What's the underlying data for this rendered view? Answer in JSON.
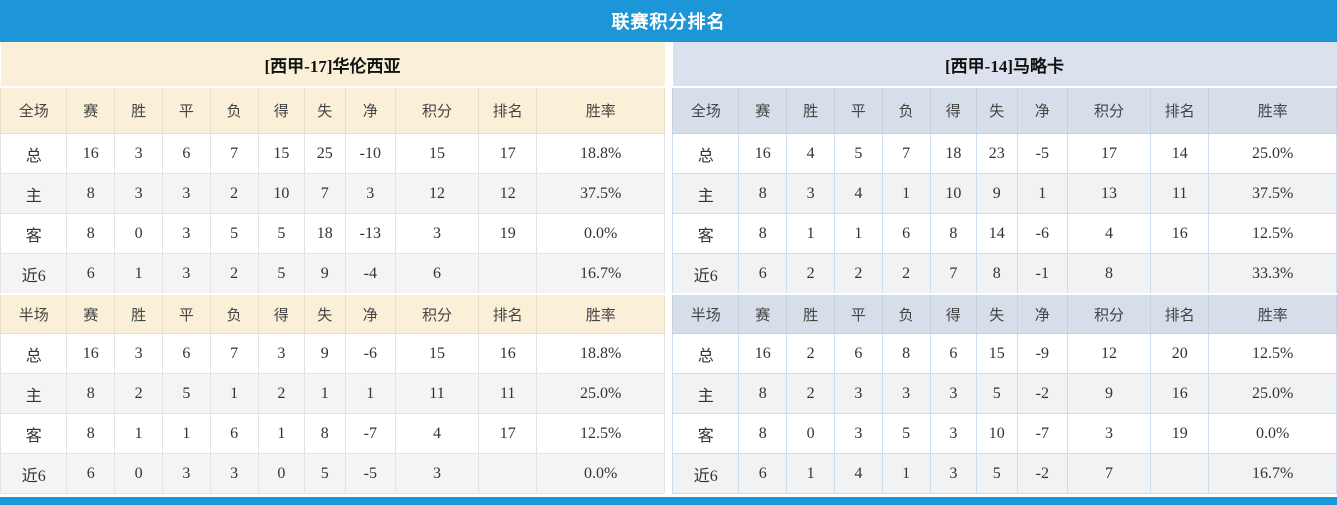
{
  "title": "联赛积分排名",
  "colors": {
    "bar_blue": "#1C96D6",
    "points_red": "#E8431C",
    "rank_blue": "#3E81C2",
    "home_label_red": "#E03232",
    "away_label_blue": "#3333CC",
    "left_theme_bg": "#FAF0D7",
    "right_theme_bg": "#D6DEE9"
  },
  "sections": {
    "full": "全场",
    "half": "半场"
  },
  "columns": [
    "赛",
    "胜",
    "平",
    "负",
    "得",
    "失",
    "净",
    "积分",
    "排名",
    "胜率"
  ],
  "teams": [
    {
      "name": "[西甲-17]华伦西亚",
      "full": [
        {
          "label": "总",
          "cells": [
            "16",
            "3",
            "6",
            "7",
            "15",
            "25",
            "-10",
            "15",
            "17",
            "18.8%"
          ]
        },
        {
          "label": "主",
          "cells": [
            "8",
            "3",
            "3",
            "2",
            "10",
            "7",
            "3",
            "12",
            "12",
            "37.5%"
          ]
        },
        {
          "label": "客",
          "cells": [
            "8",
            "0",
            "3",
            "5",
            "5",
            "18",
            "-13",
            "3",
            "19",
            "0.0%"
          ]
        },
        {
          "label": "近6",
          "cells": [
            "6",
            "1",
            "3",
            "2",
            "5",
            "9",
            "-4",
            "6",
            "",
            "16.7%"
          ]
        }
      ],
      "half": [
        {
          "label": "总",
          "cells": [
            "16",
            "3",
            "6",
            "7",
            "3",
            "9",
            "-6",
            "15",
            "16",
            "18.8%"
          ]
        },
        {
          "label": "主",
          "cells": [
            "8",
            "2",
            "5",
            "1",
            "2",
            "1",
            "1",
            "11",
            "11",
            "25.0%"
          ]
        },
        {
          "label": "客",
          "cells": [
            "8",
            "1",
            "1",
            "6",
            "1",
            "8",
            "-7",
            "4",
            "17",
            "12.5%"
          ]
        },
        {
          "label": "近6",
          "cells": [
            "6",
            "0",
            "3",
            "3",
            "0",
            "5",
            "-5",
            "3",
            "",
            "0.0%"
          ]
        }
      ]
    },
    {
      "name": "[西甲-14]马略卡",
      "full": [
        {
          "label": "总",
          "cells": [
            "16",
            "4",
            "5",
            "7",
            "18",
            "23",
            "-5",
            "17",
            "14",
            "25.0%"
          ]
        },
        {
          "label": "主",
          "cells": [
            "8",
            "3",
            "4",
            "1",
            "10",
            "9",
            "1",
            "13",
            "11",
            "37.5%"
          ]
        },
        {
          "label": "客",
          "cells": [
            "8",
            "1",
            "1",
            "6",
            "8",
            "14",
            "-6",
            "4",
            "16",
            "12.5%"
          ]
        },
        {
          "label": "近6",
          "cells": [
            "6",
            "2",
            "2",
            "2",
            "7",
            "8",
            "-1",
            "8",
            "",
            "33.3%"
          ]
        }
      ],
      "half": [
        {
          "label": "总",
          "cells": [
            "16",
            "2",
            "6",
            "8",
            "6",
            "15",
            "-9",
            "12",
            "20",
            "12.5%"
          ]
        },
        {
          "label": "主",
          "cells": [
            "8",
            "2",
            "3",
            "3",
            "3",
            "5",
            "-2",
            "9",
            "16",
            "25.0%"
          ]
        },
        {
          "label": "客",
          "cells": [
            "8",
            "0",
            "3",
            "5",
            "3",
            "10",
            "-7",
            "3",
            "19",
            "0.0%"
          ]
        },
        {
          "label": "近6",
          "cells": [
            "6",
            "1",
            "4",
            "1",
            "3",
            "5",
            "-2",
            "7",
            "",
            "16.7%"
          ]
        }
      ]
    }
  ]
}
